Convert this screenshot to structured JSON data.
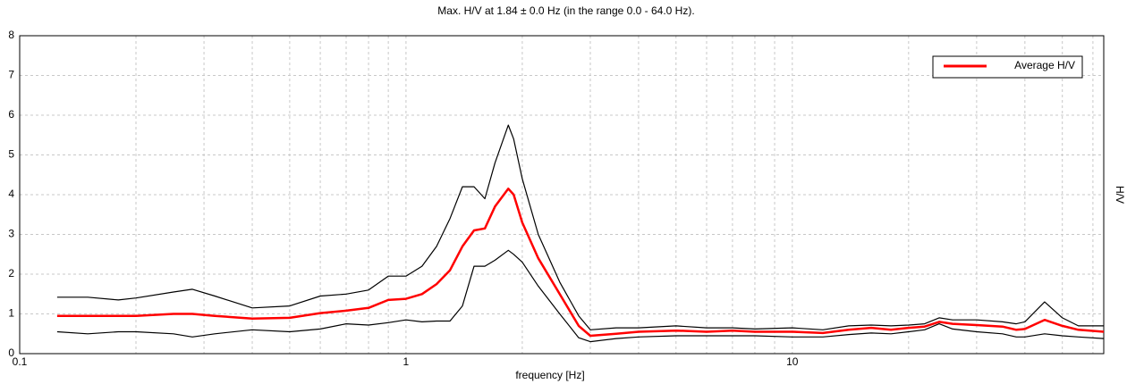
{
  "chart_data": {
    "type": "line",
    "title": "Max. H/V at 1.84 ± 0.0 Hz (in the range 0.0 - 64.0 Hz).",
    "xlabel": "frequency [Hz]",
    "ylabel": "H/V",
    "xscale": "log",
    "xlim": [
      0.1,
      64
    ],
    "xticks": [
      0.1,
      1,
      10
    ],
    "xminor_ticks": [
      0.2,
      0.3,
      0.4,
      0.5,
      0.6,
      0.7,
      0.8,
      0.9,
      2,
      3,
      4,
      5,
      6,
      7,
      8,
      9,
      20,
      30,
      40,
      50,
      60
    ],
    "ylim": [
      0,
      8
    ],
    "yticks": [
      0,
      1,
      2,
      3,
      4,
      5,
      6,
      7,
      8
    ],
    "grid": true,
    "legend": "upper right",
    "x": [
      0.125,
      0.15,
      0.18,
      0.2,
      0.25,
      0.28,
      0.32,
      0.4,
      0.5,
      0.6,
      0.7,
      0.8,
      0.9,
      1.0,
      1.1,
      1.2,
      1.3,
      1.4,
      1.5,
      1.6,
      1.7,
      1.84,
      1.9,
      2.0,
      2.2,
      2.5,
      2.8,
      3.0,
      3.5,
      4,
      5,
      6,
      7,
      8,
      10,
      12,
      14,
      16,
      18,
      20,
      22,
      24,
      26,
      30,
      35,
      38,
      40,
      45,
      50,
      55,
      64
    ],
    "series": [
      {
        "color": "#000000",
        "values": [
          1.42,
          1.42,
          1.35,
          1.4,
          1.55,
          1.62,
          1.45,
          1.15,
          1.2,
          1.45,
          1.5,
          1.6,
          1.95,
          1.95,
          2.2,
          2.7,
          3.4,
          4.2,
          4.2,
          3.9,
          4.8,
          5.75,
          5.4,
          4.4,
          3.0,
          1.8,
          0.95,
          0.6,
          0.65,
          0.65,
          0.7,
          0.65,
          0.65,
          0.62,
          0.65,
          0.6,
          0.7,
          0.72,
          0.7,
          0.72,
          0.75,
          0.9,
          0.85,
          0.85,
          0.8,
          0.75,
          0.8,
          1.3,
          0.9,
          0.7,
          0.7
        ]
      },
      {
        "color": "#000000",
        "values": [
          0.55,
          0.5,
          0.55,
          0.55,
          0.5,
          0.42,
          0.5,
          0.6,
          0.55,
          0.62,
          0.75,
          0.72,
          0.78,
          0.85,
          0.8,
          0.82,
          0.82,
          1.2,
          2.2,
          2.2,
          2.35,
          2.6,
          2.5,
          2.3,
          1.7,
          1.0,
          0.4,
          0.3,
          0.38,
          0.42,
          0.45,
          0.45,
          0.45,
          0.45,
          0.42,
          0.42,
          0.48,
          0.52,
          0.5,
          0.55,
          0.6,
          0.75,
          0.62,
          0.55,
          0.5,
          0.42,
          0.42,
          0.5,
          0.45,
          0.42,
          0.38
        ]
      },
      {
        "name": "Average H/V",
        "color": "#ff0000",
        "values": [
          0.95,
          0.95,
          0.95,
          0.95,
          1.0,
          1.0,
          0.95,
          0.88,
          0.9,
          1.02,
          1.08,
          1.15,
          1.35,
          1.38,
          1.5,
          1.75,
          2.1,
          2.7,
          3.1,
          3.15,
          3.7,
          4.15,
          4.0,
          3.3,
          2.4,
          1.5,
          0.7,
          0.45,
          0.5,
          0.55,
          0.58,
          0.55,
          0.58,
          0.55,
          0.55,
          0.52,
          0.6,
          0.65,
          0.6,
          0.65,
          0.68,
          0.8,
          0.75,
          0.72,
          0.68,
          0.6,
          0.62,
          0.85,
          0.7,
          0.6,
          0.55
        ]
      }
    ]
  }
}
